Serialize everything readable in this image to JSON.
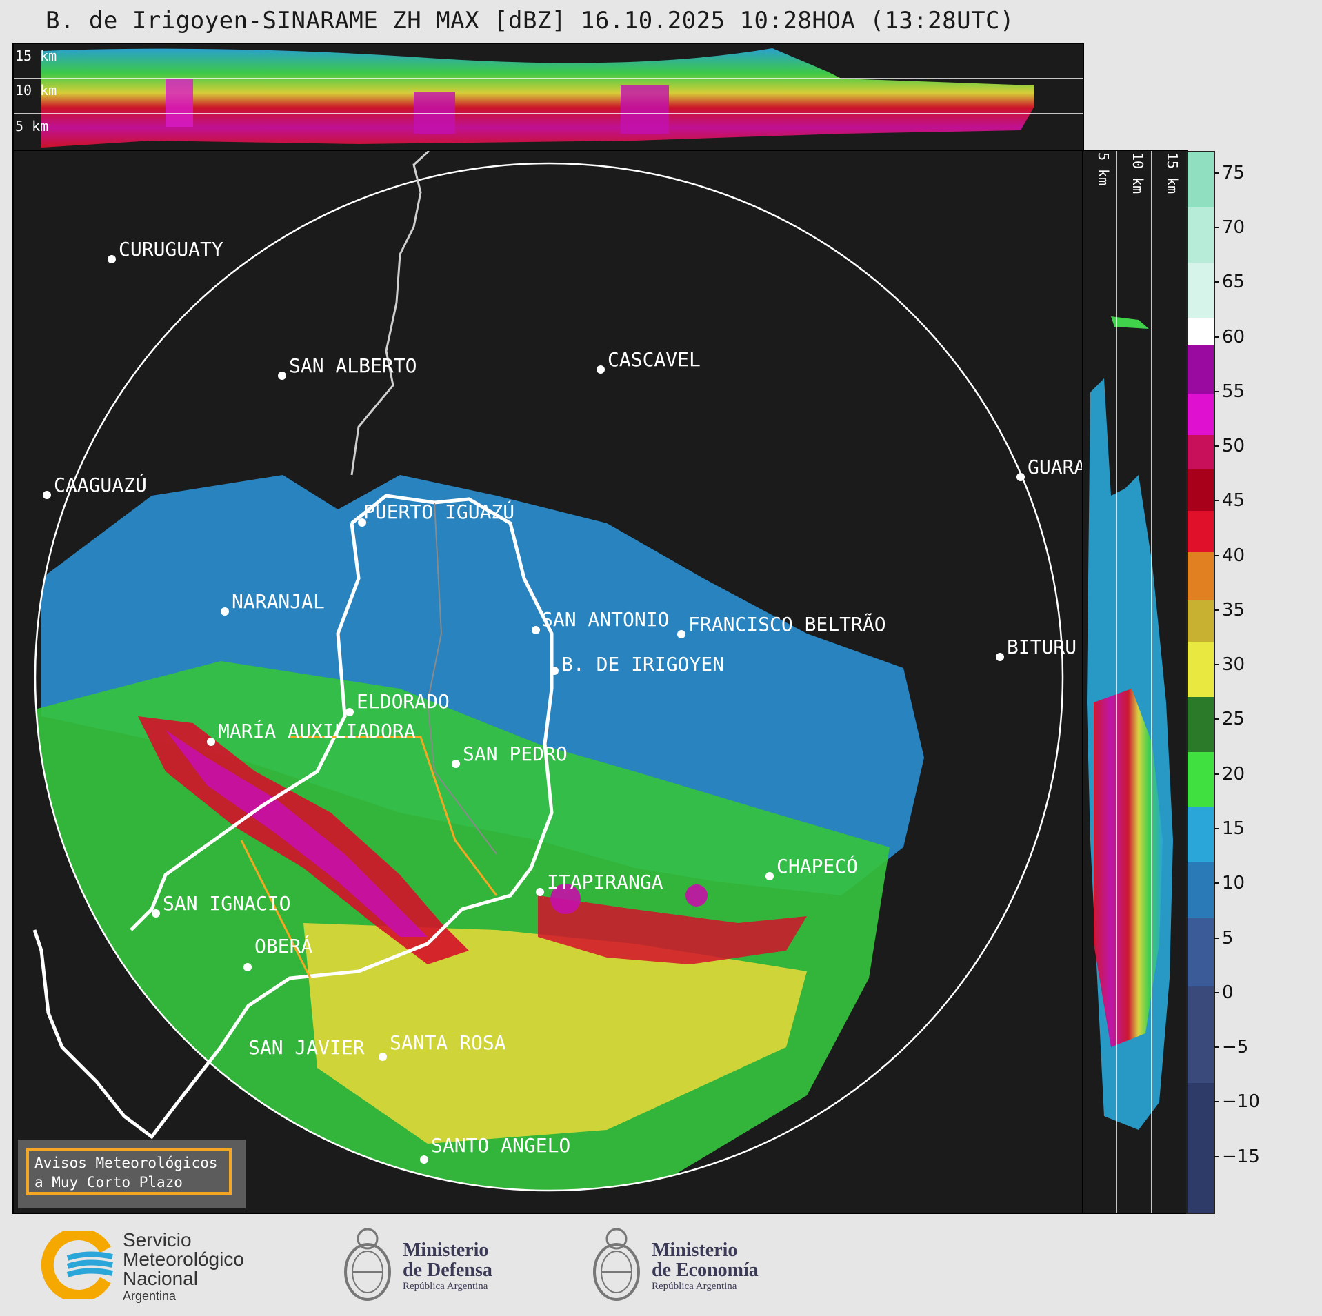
{
  "title": "B. de Irigoyen-SINARAME ZH MAX [dBZ] 16.10.2025 10:28HOA (13:28UTC)",
  "height_labels_top": [
    "15 km",
    "10 km",
    "5 km"
  ],
  "height_labels_side": [
    "5 km",
    "10 km",
    "15 km"
  ],
  "cities": [
    {
      "name": "CURUGUATY"
    },
    {
      "name": "SAN ALBERTO"
    },
    {
      "name": "CASCAVEL"
    },
    {
      "name": "CAAGUAZÚ"
    },
    {
      "name": "GUARA"
    },
    {
      "name": "PUERTO IGUAZÚ"
    },
    {
      "name": "NARANJAL"
    },
    {
      "name": "SAN ANTONIO"
    },
    {
      "name": "FRANCISCO BELTRÃO"
    },
    {
      "name": "BITURU"
    },
    {
      "name": "B. DE IRIGOYEN"
    },
    {
      "name": "ELDORADO"
    },
    {
      "name": "MARÍA AUXILIADORA"
    },
    {
      "name": "SAN PEDRO"
    },
    {
      "name": "CHAPECÓ"
    },
    {
      "name": "ITAPIRANGA"
    },
    {
      "name": "SAN IGNACIO"
    },
    {
      "name": "OBERÁ"
    },
    {
      "name": "SAN JAVIER"
    },
    {
      "name": "SANTA ROSA"
    },
    {
      "name": "SANTO ANGELO"
    }
  ],
  "colorbar": {
    "ticks": [
      "75",
      "70",
      "65",
      "60",
      "55",
      "50",
      "45",
      "40",
      "35",
      "30",
      "25",
      "20",
      "15",
      "10",
      "5",
      "0",
      "−5",
      "−10",
      "−15"
    ],
    "range_dbz": [
      -20,
      77
    ]
  },
  "avisos": {
    "line1": "Avisos Meteorológicos",
    "line2": "a Muy Corto Plazo"
  },
  "logos": {
    "smn": {
      "line1": "Servicio",
      "line2": "Meteorológico",
      "line3": "Nacional",
      "line4": "Argentina"
    },
    "defensa": {
      "line1": "Ministerio",
      "line2": "de Defensa",
      "line3": "República Argentina"
    },
    "economia": {
      "line1": "Ministerio",
      "line2": "de Economía",
      "line3": "República Argentina"
    }
  }
}
